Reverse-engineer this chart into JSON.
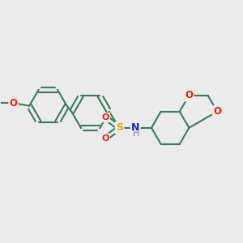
{
  "background_color": "#ebebeb",
  "bond_color": "#3a7a5a",
  "bond_width": 1.5,
  "atom_colors": {
    "O": "#ff1500",
    "S": "#c8b400",
    "N": "#2020cc",
    "H": "#888888"
  },
  "figsize": [
    3.0,
    3.0
  ],
  "dpi": 100
}
